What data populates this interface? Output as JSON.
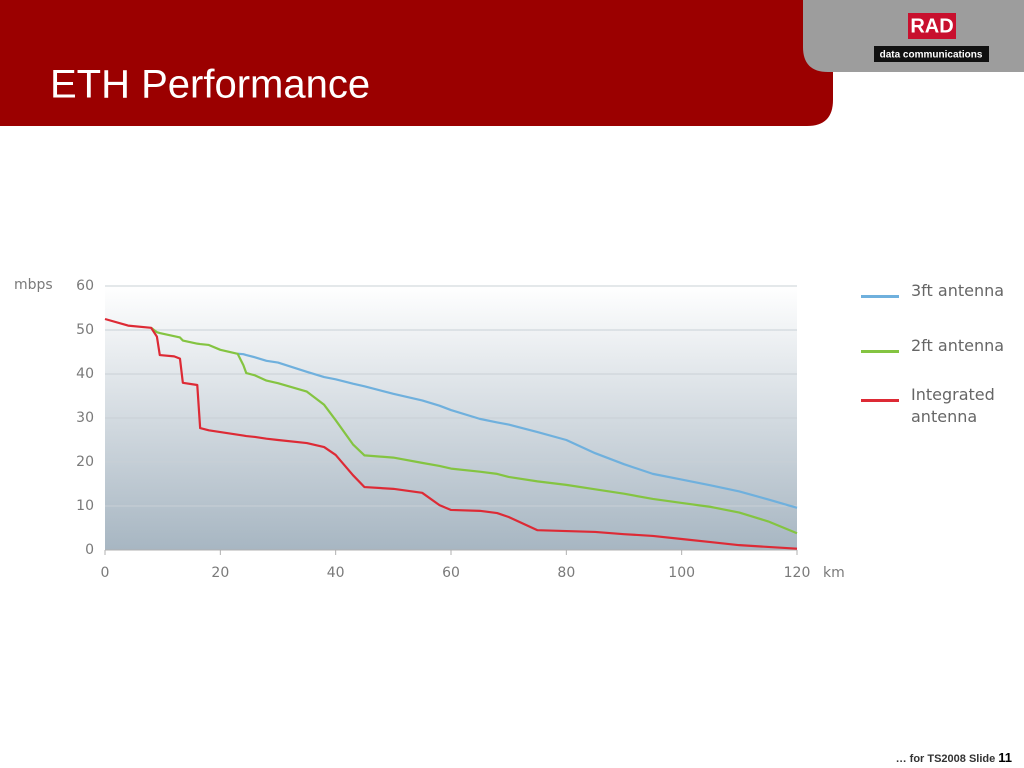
{
  "chart_data": {
    "type": "line",
    "title": "ETH Performance",
    "y_label": "mbps",
    "x_label": "km",
    "x": [
      0,
      4,
      8,
      9,
      9.5,
      12,
      13,
      13.5,
      16,
      16.5,
      18,
      20,
      23,
      24,
      24.5,
      26,
      28,
      30,
      35,
      38,
      40,
      43,
      45,
      50,
      55,
      58,
      60,
      65,
      68,
      70,
      75,
      80,
      85,
      90,
      95,
      100,
      105,
      110,
      115,
      120
    ],
    "series": [
      {
        "name": "3ft antenna",
        "color": "#6fb0dd",
        "values": [
          null,
          null,
          null,
          null,
          null,
          null,
          null,
          null,
          null,
          null,
          null,
          null,
          44.6,
          44.5,
          44.3,
          43.8,
          43,
          42.6,
          40.5,
          39.3,
          38.8,
          37.8,
          37.2,
          35.5,
          34,
          32.8,
          31.8,
          29.8,
          29,
          28.5,
          26.8,
          25,
          22,
          19.5,
          17.3,
          16,
          14.7,
          13.3,
          11.5,
          9.6
        ]
      },
      {
        "name": "2ft antenna",
        "color": "#84c441",
        "values": [
          null,
          null,
          50.5,
          49.5,
          49.3,
          48.6,
          48.3,
          47.6,
          46.9,
          46.8,
          46.6,
          45.5,
          44.6,
          42,
          40.2,
          39.7,
          38.5,
          37.9,
          36,
          33,
          29.5,
          24,
          21.5,
          21,
          19.8,
          19.1,
          18.5,
          17.8,
          17.3,
          16.6,
          15.6,
          14.8,
          13.8,
          12.8,
          11.6,
          10.7,
          9.8,
          8.5,
          6.5,
          3.8
        ]
      },
      {
        "name": "Integrated antenna",
        "color": "#dd2a35",
        "values": [
          52.5,
          51,
          50.5,
          48.5,
          44.3,
          44,
          43.5,
          38,
          37.5,
          27.7,
          27.2,
          26.8,
          26.2,
          26,
          25.9,
          25.7,
          25.3,
          25,
          24.3,
          23.4,
          21.6,
          17,
          14.3,
          13.9,
          13,
          10.2,
          9.1,
          8.9,
          8.4,
          7.5,
          4.5,
          4.3,
          4.1,
          3.6,
          3.2,
          2.5,
          1.8,
          1.1,
          0.7,
          0.3
        ]
      }
    ],
    "xlim": [
      0,
      120
    ],
    "xticks": [
      0,
      20,
      40,
      60,
      80,
      100,
      120
    ],
    "ylim": [
      0,
      60
    ],
    "yticks": [
      0,
      10,
      20,
      30,
      40,
      50,
      60
    ],
    "grid": true
  },
  "logo": {
    "brand": "RAD",
    "tagline": "data communications"
  },
  "footer": {
    "text": "… for TS2008  Slide",
    "page_number": 11
  }
}
